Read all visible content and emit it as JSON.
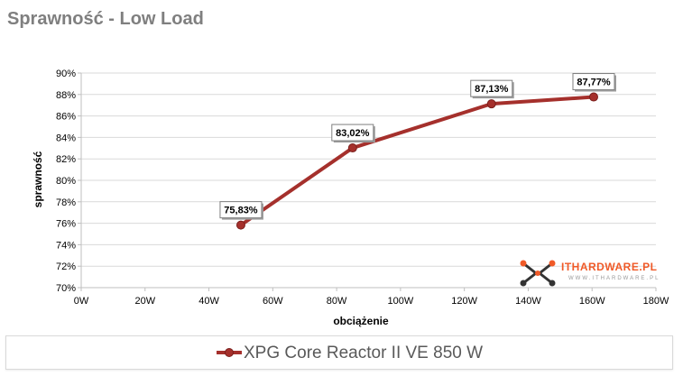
{
  "page": {
    "title": "Sprawność - Low Load"
  },
  "watermark": {
    "name": "ITHARDWARE.PL",
    "sub": "WWW.ITHARDWARE.PL",
    "icon": "logo-icon"
  },
  "colors": {
    "series": "#a5302c",
    "grid": "#d9d9d9",
    "axis": "#bfbfbf",
    "tick_text": "#000000"
  },
  "chart_data": {
    "type": "line",
    "title": "Sprawność - Low Load",
    "xlabel": "obciążenie",
    "ylabel": "sprawność",
    "xlim": [
      0,
      180
    ],
    "ylim": [
      70,
      90
    ],
    "x_ticks": [
      0,
      20,
      40,
      60,
      80,
      100,
      120,
      140,
      160,
      180
    ],
    "x_tick_labels": [
      "0W",
      "20W",
      "40W",
      "60W",
      "80W",
      "100W",
      "120W",
      "140W",
      "160W",
      "180W"
    ],
    "y_ticks": [
      70,
      72,
      74,
      76,
      78,
      80,
      82,
      84,
      86,
      88,
      90
    ],
    "y_tick_labels": [
      "70%",
      "72%",
      "74%",
      "76%",
      "78%",
      "80%",
      "82%",
      "84%",
      "86%",
      "88%",
      "90%"
    ],
    "grid": true,
    "legend": "bottom",
    "series": [
      {
        "name": "XPG Core Reactor II VE 850 W",
        "x": [
          50,
          85,
          128.5,
          160.5
        ],
        "y": [
          75.83,
          83.02,
          87.13,
          87.77
        ],
        "labels": [
          "75,83%",
          "83,02%",
          "87,13%",
          "87,77%"
        ]
      }
    ]
  }
}
